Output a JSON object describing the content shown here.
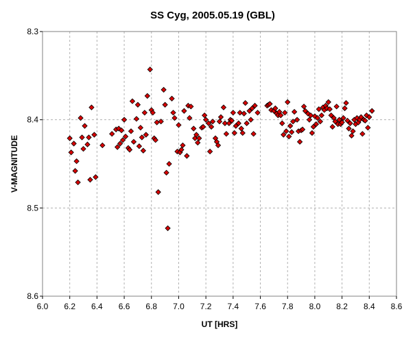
{
  "chart_data": {
    "type": "scatter",
    "title": "SS Cyg, 2005.05.19 (GBL)",
    "xlabel": "UT [HRS]",
    "ylabel": "V-MAGNITUDE",
    "xlim": [
      6.0,
      8.6
    ],
    "ylim": [
      8.3,
      8.6
    ],
    "y_inverted": true,
    "xticks": [
      "6.0",
      "6.2",
      "6.4",
      "6.6",
      "6.8",
      "7.0",
      "7.2",
      "7.4",
      "7.6",
      "7.8",
      "8.0",
      "8.2",
      "8.4",
      "8.6"
    ],
    "yticks": [
      "8.3",
      "8.4",
      "8.5",
      "8.6"
    ],
    "grid": true,
    "marker": "diamond",
    "color": "#d80000",
    "series": [
      {
        "points": [
          [
            6.2,
            8.421
          ],
          [
            6.21,
            8.437
          ],
          [
            6.23,
            8.427
          ],
          [
            6.24,
            8.458
          ],
          [
            6.25,
            8.447
          ],
          [
            6.26,
            8.471
          ],
          [
            6.28,
            8.398
          ],
          [
            6.29,
            8.42
          ],
          [
            6.3,
            8.433
          ],
          [
            6.31,
            8.407
          ],
          [
            6.33,
            8.428
          ],
          [
            6.34,
            8.42
          ],
          [
            6.35,
            8.468
          ],
          [
            6.36,
            8.386
          ],
          [
            6.38,
            8.417
          ],
          [
            6.39,
            8.465
          ],
          [
            6.44,
            8.429
          ],
          [
            6.51,
            8.416
          ],
          [
            6.54,
            8.411
          ],
          [
            6.55,
            8.431
          ],
          [
            6.56,
            8.41
          ],
          [
            6.57,
            8.427
          ],
          [
            6.58,
            8.412
          ],
          [
            6.59,
            8.423
          ],
          [
            6.6,
            8.4
          ],
          [
            6.61,
            8.419
          ],
          [
            6.63,
            8.432
          ],
          [
            6.64,
            8.434
          ],
          [
            6.65,
            8.413
          ],
          [
            6.66,
            8.379
          ],
          [
            6.67,
            8.425
          ],
          [
            6.69,
            8.399
          ],
          [
            6.7,
            8.383
          ],
          [
            6.71,
            8.43
          ],
          [
            6.72,
            8.409
          ],
          [
            6.73,
            8.42
          ],
          [
            6.74,
            8.435
          ],
          [
            6.75,
            8.392
          ],
          [
            6.76,
            8.417
          ],
          [
            6.77,
            8.373
          ],
          [
            6.79,
            8.343
          ],
          [
            6.8,
            8.389
          ],
          [
            6.81,
            8.392
          ],
          [
            6.82,
            8.421
          ],
          [
            6.83,
            8.423
          ],
          [
            6.84,
            8.403
          ],
          [
            6.85,
            8.482
          ],
          [
            6.87,
            8.402
          ],
          [
            6.89,
            8.366
          ],
          [
            6.9,
            8.383
          ],
          [
            6.91,
            8.46
          ],
          [
            6.92,
            8.523
          ],
          [
            6.93,
            8.45
          ],
          [
            6.95,
            8.376
          ],
          [
            6.96,
            8.392
          ],
          [
            6.97,
            8.398
          ],
          [
            6.99,
            8.436
          ],
          [
            7.0,
            8.406
          ],
          [
            7.01,
            8.437
          ],
          [
            7.02,
            8.434
          ],
          [
            7.03,
            8.429
          ],
          [
            7.04,
            8.39
          ],
          [
            7.06,
            8.441
          ],
          [
            7.07,
            8.384
          ],
          [
            7.08,
            8.398
          ],
          [
            7.09,
            8.385
          ],
          [
            7.11,
            8.41
          ],
          [
            7.12,
            8.421
          ],
          [
            7.13,
            8.417
          ],
          [
            7.14,
            8.426
          ],
          [
            7.15,
            8.421
          ],
          [
            7.17,
            8.409
          ],
          [
            7.18,
            8.408
          ],
          [
            7.19,
            8.395
          ],
          [
            7.2,
            8.4
          ],
          [
            7.22,
            8.404
          ],
          [
            7.23,
            8.436
          ],
          [
            7.24,
            8.408
          ],
          [
            7.25,
            8.402
          ],
          [
            7.27,
            8.421
          ],
          [
            7.28,
            8.425
          ],
          [
            7.29,
            8.429
          ],
          [
            7.3,
            8.402
          ],
          [
            7.31,
            8.397
          ],
          [
            7.33,
            8.386
          ],
          [
            7.34,
            8.404
          ],
          [
            7.35,
            8.416
          ],
          [
            7.37,
            8.404
          ],
          [
            7.38,
            8.4
          ],
          [
            7.39,
            8.401
          ],
          [
            7.4,
            8.392
          ],
          [
            7.41,
            8.415
          ],
          [
            7.42,
            8.407
          ],
          [
            7.44,
            8.404
          ],
          [
            7.45,
            8.392
          ],
          [
            7.46,
            8.41
          ],
          [
            7.47,
            8.415
          ],
          [
            7.48,
            8.393
          ],
          [
            7.49,
            8.381
          ],
          [
            7.5,
            8.404
          ],
          [
            7.52,
            8.39
          ],
          [
            7.53,
            8.4
          ],
          [
            7.54,
            8.387
          ],
          [
            7.55,
            8.416
          ],
          [
            7.56,
            8.384
          ],
          [
            7.58,
            8.392
          ],
          [
            7.65,
            8.384
          ],
          [
            7.66,
            8.383
          ],
          [
            7.67,
            8.382
          ],
          [
            7.68,
            8.389
          ],
          [
            7.7,
            8.39
          ],
          [
            7.71,
            8.387
          ],
          [
            7.72,
            8.393
          ],
          [
            7.73,
            8.395
          ],
          [
            7.74,
            8.391
          ],
          [
            7.75,
            8.395
          ],
          [
            7.76,
            8.404
          ],
          [
            7.77,
            8.417
          ],
          [
            7.78,
            8.392
          ],
          [
            7.79,
            8.413
          ],
          [
            7.8,
            8.38
          ],
          [
            7.81,
            8.419
          ],
          [
            7.82,
            8.407
          ],
          [
            7.83,
            8.414
          ],
          [
            7.84,
            8.402
          ],
          [
            7.85,
            8.391
          ],
          [
            7.87,
            8.4
          ],
          [
            7.88,
            8.413
          ],
          [
            7.89,
            8.425
          ],
          [
            7.9,
            8.412
          ],
          [
            7.91,
            8.411
          ],
          [
            7.92,
            8.385
          ],
          [
            7.93,
            8.39
          ],
          [
            7.95,
            8.393
          ],
          [
            7.96,
            8.4
          ],
          [
            7.97,
            8.395
          ],
          [
            7.98,
            8.415
          ],
          [
            7.99,
            8.408
          ],
          [
            8.0,
            8.396
          ],
          [
            8.01,
            8.405
          ],
          [
            8.02,
            8.398
          ],
          [
            8.03,
            8.388
          ],
          [
            8.04,
            8.402
          ],
          [
            8.05,
            8.395
          ],
          [
            8.06,
            8.386
          ],
          [
            8.07,
            8.389
          ],
          [
            8.08,
            8.384
          ],
          [
            8.09,
            8.387
          ],
          [
            8.1,
            8.38
          ],
          [
            8.11,
            8.388
          ],
          [
            8.12,
            8.395
          ],
          [
            8.13,
            8.408
          ],
          [
            8.14,
            8.398
          ],
          [
            8.15,
            8.402
          ],
          [
            8.16,
            8.385
          ],
          [
            8.17,
            8.405
          ],
          [
            8.18,
            8.4
          ],
          [
            8.19,
            8.405
          ],
          [
            8.2,
            8.403
          ],
          [
            8.21,
            8.398
          ],
          [
            8.22,
            8.387
          ],
          [
            8.23,
            8.381
          ],
          [
            8.24,
            8.401
          ],
          [
            8.25,
            8.41
          ],
          [
            8.26,
            8.404
          ],
          [
            8.27,
            8.418
          ],
          [
            8.28,
            8.413
          ],
          [
            8.29,
            8.4
          ],
          [
            8.3,
            8.405
          ],
          [
            8.31,
            8.398
          ],
          [
            8.32,
            8.403
          ],
          [
            8.33,
            8.4
          ],
          [
            8.34,
            8.397
          ],
          [
            8.35,
            8.416
          ],
          [
            8.36,
            8.4
          ],
          [
            8.37,
            8.401
          ],
          [
            8.38,
            8.395
          ],
          [
            8.39,
            8.409
          ],
          [
            8.4,
            8.397
          ],
          [
            8.42,
            8.39
          ]
        ]
      }
    ]
  }
}
